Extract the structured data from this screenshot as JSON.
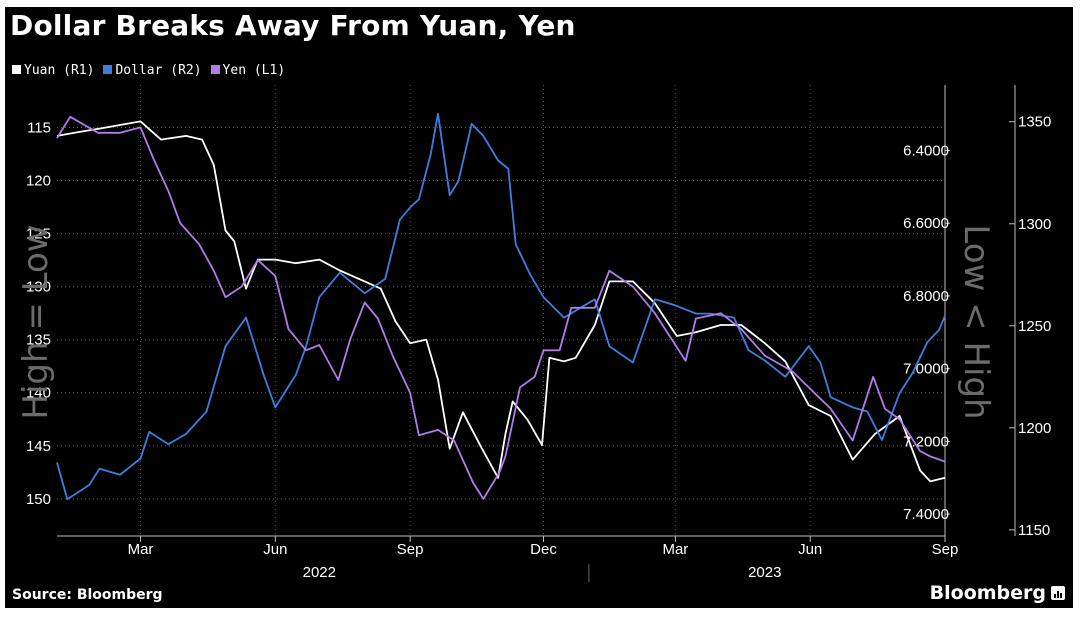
{
  "title": "Dollar Breaks Away From Yuan, Yen",
  "source": "Source: Bloomberg",
  "brand": "Bloomberg",
  "colors": {
    "background": "#000000",
    "yuan": "#ffffff",
    "dollar": "#3d7fe0",
    "yen": "#b07bea",
    "text": "#ffffff",
    "grid": "#555555",
    "axis_watermark": "#6b6b6b"
  },
  "chart_data": {
    "type": "line",
    "title": "Dollar Breaks Away From Yuan, Yen",
    "legend": {
      "position": "top-left",
      "entries": [
        "Yuan (R1)",
        "Dollar (R2)",
        "Yen (L1)"
      ]
    },
    "grid": true,
    "x_range": [
      "2022-01-03",
      "2023-09-01"
    ],
    "x_ticks": [
      {
        "date": "2022-03-01",
        "label": "Mar"
      },
      {
        "date": "2022-06-01",
        "label": "Jun"
      },
      {
        "date": "2022-09-01",
        "label": "Sep"
      },
      {
        "date": "2022-12-01",
        "label": "Dec"
      },
      {
        "date": "2023-03-01",
        "label": "Mar"
      },
      {
        "date": "2023-06-01",
        "label": "Jun"
      },
      {
        "date": "2023-09-01",
        "label": "Sep"
      }
    ],
    "year_labels": [
      {
        "label": "2022",
        "date": "2022-07-01"
      },
      {
        "label": "2023",
        "date": "2023-05-01"
      }
    ],
    "year_divider": "2023-01-01",
    "axes": {
      "L1": {
        "label": "High = Low",
        "inverted": true,
        "range": [
          111,
          153.5
        ],
        "ticks": [
          115,
          120,
          125,
          130,
          135,
          140,
          145,
          150
        ]
      },
      "R1": {
        "label": "Low < High",
        "inverted": true,
        "range": [
          6.22,
          7.46
        ],
        "ticks": [
          "6.4000",
          "6.6000",
          "6.8000",
          "7.0000",
          "7.2000",
          "7.4000"
        ]
      },
      "R2": {
        "inverted": false,
        "range": [
          1147,
          1368
        ],
        "ticks": [
          1150,
          1200,
          1250,
          1300,
          1350
        ]
      }
    },
    "series": [
      {
        "name": "Yuan (R1)",
        "axis": "R1",
        "color": "#ffffff",
        "points": [
          [
            "2022-01-03",
            6.36
          ],
          [
            "2022-01-17",
            6.35
          ],
          [
            "2022-02-01",
            6.34
          ],
          [
            "2022-02-15",
            6.33
          ],
          [
            "2022-03-01",
            6.32
          ],
          [
            "2022-03-15",
            6.37
          ],
          [
            "2022-04-01",
            6.36
          ],
          [
            "2022-04-12",
            6.37
          ],
          [
            "2022-04-20",
            6.44
          ],
          [
            "2022-04-28",
            6.62
          ],
          [
            "2022-05-04",
            6.65
          ],
          [
            "2022-05-12",
            6.78
          ],
          [
            "2022-05-20",
            6.7
          ],
          [
            "2022-06-01",
            6.7
          ],
          [
            "2022-06-15",
            6.71
          ],
          [
            "2022-07-01",
            6.7
          ],
          [
            "2022-07-15",
            6.73
          ],
          [
            "2022-08-01",
            6.76
          ],
          [
            "2022-08-12",
            6.78
          ],
          [
            "2022-08-22",
            6.87
          ],
          [
            "2022-09-01",
            6.93
          ],
          [
            "2022-09-12",
            6.92
          ],
          [
            "2022-09-20",
            7.03
          ],
          [
            "2022-09-28",
            7.22
          ],
          [
            "2022-10-07",
            7.12
          ],
          [
            "2022-10-20",
            7.22
          ],
          [
            "2022-10-31",
            7.3
          ],
          [
            "2022-11-05",
            7.18
          ],
          [
            "2022-11-10",
            7.09
          ],
          [
            "2022-11-20",
            7.14
          ],
          [
            "2022-11-30",
            7.21
          ],
          [
            "2022-12-05",
            6.97
          ],
          [
            "2022-12-15",
            6.98
          ],
          [
            "2022-12-23",
            6.97
          ],
          [
            "2023-01-05",
            6.88
          ],
          [
            "2023-01-15",
            6.76
          ],
          [
            "2023-01-31",
            6.76
          ],
          [
            "2023-02-15",
            6.82
          ],
          [
            "2023-03-02",
            6.91
          ],
          [
            "2023-03-15",
            6.9
          ],
          [
            "2023-04-01",
            6.88
          ],
          [
            "2023-04-15",
            6.88
          ],
          [
            "2023-05-01",
            6.93
          ],
          [
            "2023-05-15",
            6.98
          ],
          [
            "2023-05-31",
            7.1
          ],
          [
            "2023-06-15",
            7.13
          ],
          [
            "2023-06-30",
            7.25
          ],
          [
            "2023-07-15",
            7.18
          ],
          [
            "2023-08-01",
            7.13
          ],
          [
            "2023-08-15",
            7.28
          ],
          [
            "2023-08-22",
            7.31
          ],
          [
            "2023-09-01",
            7.3
          ]
        ]
      },
      {
        "name": "Dollar (R2)",
        "axis": "R2",
        "color": "#3d7fe0",
        "points": [
          [
            "2022-01-03",
            1183
          ],
          [
            "2022-01-10",
            1165
          ],
          [
            "2022-01-25",
            1172
          ],
          [
            "2022-02-01",
            1180
          ],
          [
            "2022-02-15",
            1177
          ],
          [
            "2022-03-01",
            1185
          ],
          [
            "2022-03-07",
            1198
          ],
          [
            "2022-03-20",
            1192
          ],
          [
            "2022-04-01",
            1197
          ],
          [
            "2022-04-15",
            1208
          ],
          [
            "2022-04-28",
            1240
          ],
          [
            "2022-05-12",
            1254
          ],
          [
            "2022-05-24",
            1226
          ],
          [
            "2022-06-01",
            1210
          ],
          [
            "2022-06-15",
            1226
          ],
          [
            "2022-06-22",
            1240
          ],
          [
            "2022-07-01",
            1264
          ],
          [
            "2022-07-15",
            1276
          ],
          [
            "2022-08-01",
            1266
          ],
          [
            "2022-08-15",
            1273
          ],
          [
            "2022-08-25",
            1302
          ],
          [
            "2022-09-01",
            1308
          ],
          [
            "2022-09-07",
            1312
          ],
          [
            "2022-09-15",
            1334
          ],
          [
            "2022-09-20",
            1354
          ],
          [
            "2022-09-28",
            1314
          ],
          [
            "2022-10-04",
            1321
          ],
          [
            "2022-10-13",
            1349
          ],
          [
            "2022-10-21",
            1343
          ],
          [
            "2022-10-31",
            1331
          ],
          [
            "2022-11-07",
            1327
          ],
          [
            "2022-11-12",
            1290
          ],
          [
            "2022-11-22",
            1275
          ],
          [
            "2022-12-01",
            1264
          ],
          [
            "2022-12-15",
            1254
          ],
          [
            "2023-01-05",
            1263
          ],
          [
            "2023-01-15",
            1240
          ],
          [
            "2023-01-31",
            1232
          ],
          [
            "2023-02-15",
            1263
          ],
          [
            "2023-03-01",
            1260
          ],
          [
            "2023-03-15",
            1256
          ],
          [
            "2023-03-25",
            1256
          ],
          [
            "2023-04-10",
            1254
          ],
          [
            "2023-04-20",
            1238
          ],
          [
            "2023-05-01",
            1233
          ],
          [
            "2023-05-15",
            1225
          ],
          [
            "2023-05-31",
            1240
          ],
          [
            "2023-06-08",
            1232
          ],
          [
            "2023-06-15",
            1215
          ],
          [
            "2023-06-30",
            1210
          ],
          [
            "2023-07-10",
            1208
          ],
          [
            "2023-07-20",
            1194
          ],
          [
            "2023-08-01",
            1217
          ],
          [
            "2023-08-10",
            1227
          ],
          [
            "2023-08-20",
            1242
          ],
          [
            "2023-08-28",
            1248
          ],
          [
            "2023-09-01",
            1255
          ]
        ]
      },
      {
        "name": "Yen (L1)",
        "axis": "L1",
        "color": "#b07bea",
        "points": [
          [
            "2022-01-03",
            116.0
          ],
          [
            "2022-01-12",
            114.0
          ],
          [
            "2022-01-31",
            115.5
          ],
          [
            "2022-02-15",
            115.5
          ],
          [
            "2022-03-01",
            115.0
          ],
          [
            "2022-03-10",
            118.0
          ],
          [
            "2022-03-20",
            121.0
          ],
          [
            "2022-03-28",
            124.0
          ],
          [
            "2022-04-10",
            126.0
          ],
          [
            "2022-04-20",
            128.5
          ],
          [
            "2022-04-28",
            131.0
          ],
          [
            "2022-05-09",
            130.0
          ],
          [
            "2022-05-20",
            127.5
          ],
          [
            "2022-06-01",
            129.0
          ],
          [
            "2022-06-10",
            134.0
          ],
          [
            "2022-06-22",
            136.0
          ],
          [
            "2022-07-01",
            135.5
          ],
          [
            "2022-07-14",
            138.8
          ],
          [
            "2022-07-22",
            135.0
          ],
          [
            "2022-08-01",
            131.5
          ],
          [
            "2022-08-10",
            133.0
          ],
          [
            "2022-08-20",
            136.5
          ],
          [
            "2022-09-01",
            140.0
          ],
          [
            "2022-09-07",
            144.0
          ],
          [
            "2022-09-20",
            143.5
          ],
          [
            "2022-10-01",
            144.5
          ],
          [
            "2022-10-14",
            148.5
          ],
          [
            "2022-10-21",
            150.0
          ],
          [
            "2022-11-01",
            147.5
          ],
          [
            "2022-11-05",
            146.0
          ],
          [
            "2022-11-15",
            139.5
          ],
          [
            "2022-11-25",
            138.5
          ],
          [
            "2022-12-01",
            136.0
          ],
          [
            "2022-12-12",
            136.0
          ],
          [
            "2022-12-20",
            132.0
          ],
          [
            "2023-01-05",
            132.0
          ],
          [
            "2023-01-15",
            128.5
          ],
          [
            "2023-01-31",
            130.0
          ],
          [
            "2023-02-15",
            132.5
          ],
          [
            "2023-03-01",
            135.5
          ],
          [
            "2023-03-08",
            137.0
          ],
          [
            "2023-03-15",
            133.0
          ],
          [
            "2023-04-01",
            132.5
          ],
          [
            "2023-04-15",
            134.0
          ],
          [
            "2023-05-01",
            136.5
          ],
          [
            "2023-05-20",
            138.0
          ],
          [
            "2023-05-31",
            139.5
          ],
          [
            "2023-06-15",
            141.5
          ],
          [
            "2023-06-30",
            144.5
          ],
          [
            "2023-07-14",
            138.5
          ],
          [
            "2023-07-22",
            141.5
          ],
          [
            "2023-08-01",
            142.5
          ],
          [
            "2023-08-15",
            145.5
          ],
          [
            "2023-08-22",
            146.0
          ],
          [
            "2023-09-01",
            146.5
          ]
        ]
      }
    ]
  }
}
